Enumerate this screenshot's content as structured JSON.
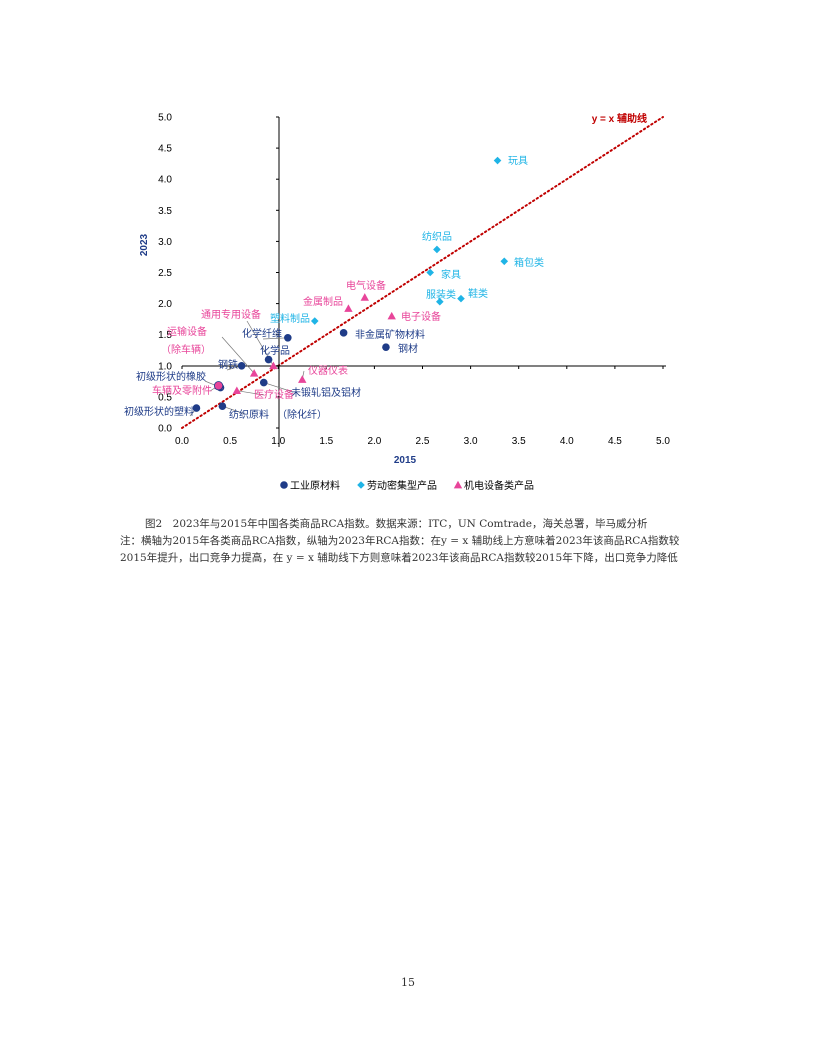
{
  "chart_data": {
    "type": "scatter",
    "title": "",
    "xlabel": "2015",
    "ylabel": "2023",
    "xlim": [
      0.0,
      5.0
    ],
    "ylim": [
      0.0,
      5.0
    ],
    "x_ticks": [
      "0.0",
      "0.5",
      "1.0",
      "1.5",
      "2.0",
      "2.5",
      "3.0",
      "3.5",
      "4.0",
      "4.5",
      "5.0"
    ],
    "y_ticks": [
      "0.0",
      "0.5",
      "1.0",
      "1.5",
      "2.0",
      "2.5",
      "3.0",
      "3.5",
      "4.0",
      "4.5",
      "5.0"
    ],
    "grid": false,
    "legend_position": "bottom",
    "reference_line": {
      "label": "y = x 辅助线",
      "color": "#c00000",
      "from": [
        0,
        0
      ],
      "to": [
        5,
        5
      ]
    },
    "series": [
      {
        "name": "工业原材料",
        "marker": "circle",
        "color": "#1f3c88",
        "points": [
          {
            "label": "化学纤维",
            "x": 1.1,
            "y": 1.45
          },
          {
            "label": "化学品",
            "x": 0.9,
            "y": 1.1
          },
          {
            "label": "非金属矿物材料",
            "x": 1.68,
            "y": 1.53
          },
          {
            "label": "钢材",
            "x": 2.12,
            "y": 1.3
          },
          {
            "label": "钢铁",
            "x": 0.62,
            "y": 1.0
          },
          {
            "label": "初级形状的橡胶",
            "x": 0.4,
            "y": 0.65
          },
          {
            "label": "未锻轧铝及铝材",
            "x": 0.85,
            "y": 0.73
          },
          {
            "label": "初级形状的塑料",
            "x": 0.15,
            "y": 0.32
          },
          {
            "label": "纺织原料（除化纤）",
            "x": 0.42,
            "y": 0.35
          }
        ]
      },
      {
        "name": "劳动密集型产品",
        "marker": "diamond",
        "color": "#1fb4e6",
        "points": [
          {
            "label": "玩具",
            "x": 3.28,
            "y": 4.3
          },
          {
            "label": "纺织品",
            "x": 2.65,
            "y": 2.87
          },
          {
            "label": "家具",
            "x": 2.58,
            "y": 2.5
          },
          {
            "label": "箱包类",
            "x": 3.35,
            "y": 2.68
          },
          {
            "label": "服装类",
            "x": 2.68,
            "y": 2.03
          },
          {
            "label": "鞋类",
            "x": 2.9,
            "y": 2.08
          },
          {
            "label": "塑料制品",
            "x": 1.38,
            "y": 1.72
          }
        ]
      },
      {
        "name": "机电设备类产品",
        "marker": "triangle",
        "color": "#e8459a",
        "points": [
          {
            "label": "电气设备",
            "x": 1.9,
            "y": 2.1
          },
          {
            "label": "金属制品",
            "x": 1.73,
            "y": 1.92
          },
          {
            "label": "电子设备",
            "x": 2.18,
            "y": 1.8
          },
          {
            "label": "通用专用设备",
            "x": 0.95,
            "y": 1.0
          },
          {
            "label": "运输设备（除车辆）",
            "x": 0.75,
            "y": 0.88
          },
          {
            "label": "仪器仪表",
            "x": 1.25,
            "y": 0.78
          },
          {
            "label": "车辆及零附件",
            "x": 0.38,
            "y": 0.68
          },
          {
            "label": "医疗设备",
            "x": 0.57,
            "y": 0.6
          }
        ]
      }
    ]
  },
  "caption": {
    "line1": "图2　2023年与2015年中国各类商品RCA指数。数据来源：ITC，UN Comtrade，海关总署，毕马威分析",
    "line2": "注：横轴为2015年各类商品RCA指数，纵轴为2023年RCA指数：在y = x 辅助线上方意味着2023年该商品RCA指数较2015年提升，出口竞争力提高，在 y = x 辅助线下方则意味着2023年该商品RCA指数较2015年下降，出口竞争力降低"
  },
  "page_number": "15"
}
